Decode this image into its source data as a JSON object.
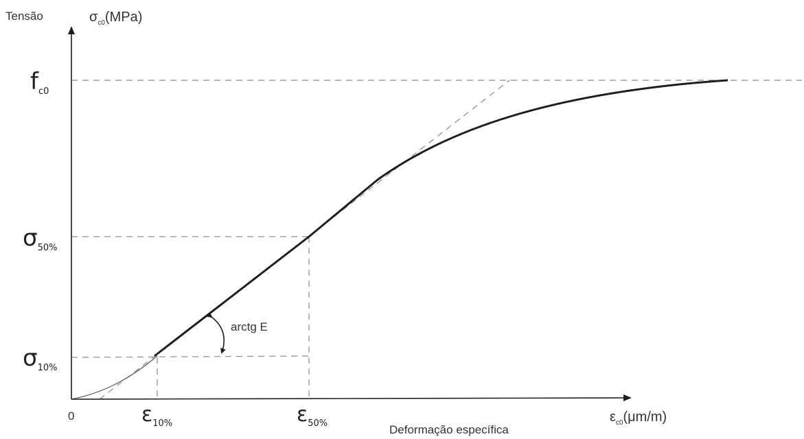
{
  "y_axis": {
    "title": "Tensão",
    "unit_symbol": "σ",
    "unit_sub": "c0",
    "unit_rest": "(MPa)"
  },
  "x_axis": {
    "title": "Deformação específica",
    "unit_symbol": "ε",
    "unit_sub": "c0",
    "unit_rest": "(μm/m)"
  },
  "origin_label": "0",
  "y_ticks": {
    "fc0": {
      "main": "f",
      "sub": "c0"
    },
    "s50": {
      "main": "σ",
      "sub": "50%"
    },
    "s10": {
      "main": "σ",
      "sub": "10%"
    }
  },
  "x_ticks": {
    "e10": {
      "main": "ε",
      "sub": "10%"
    },
    "e50": {
      "main": "ε",
      "sub": "50%"
    }
  },
  "annotation": "arctg E"
}
